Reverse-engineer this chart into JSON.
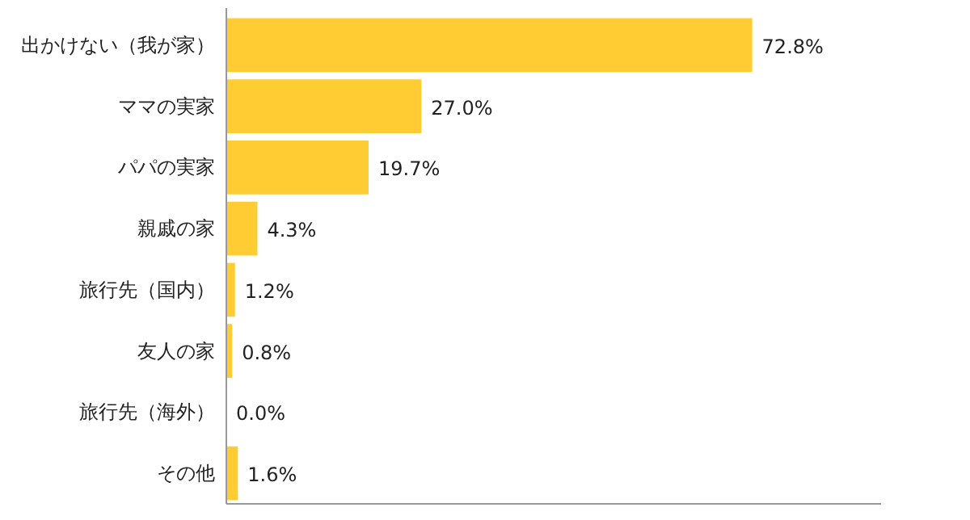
{
  "chart_data": {
    "type": "bar",
    "orientation": "horizontal",
    "categories": [
      "出かけない（我が家）",
      "ママの実家",
      "パパの実家",
      "親戚の家",
      "旅行先（国内）",
      "友人の家",
      "旅行先（海外）",
      "その他"
    ],
    "values": [
      72.8,
      27.0,
      19.7,
      4.3,
      1.2,
      0.8,
      0.0,
      1.6
    ],
    "value_labels": [
      "72.8%",
      "27.0%",
      "19.7%",
      "4.3%",
      "1.2%",
      "0.8%",
      "0.0%",
      "1.6%"
    ],
    "color": "#ffcc33",
    "grid": false
  }
}
